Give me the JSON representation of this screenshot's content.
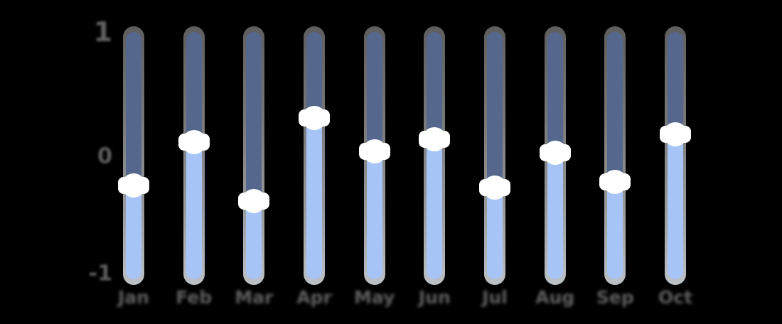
{
  "background": "#000000",
  "colors": {
    "upper_segment": "#56678e",
    "lower_segment": "#a7c4f6",
    "handle": "#ffffff",
    "rail_grey": "#8a8a8a",
    "text_grey": "#5f5f5f"
  },
  "y_axis": {
    "ticks": [
      "1",
      "0",
      "-1"
    ]
  },
  "chart_data": {
    "type": "bar",
    "subtype": "vertical-slider-columns",
    "title": "",
    "xlabel": "",
    "ylabel": "",
    "categories": [
      "Jan",
      "Feb",
      "Mar",
      "Apr",
      "May",
      "Jun",
      "Jul",
      "Aug",
      "Sep",
      "Oct"
    ],
    "values": [
      -0.24,
      0.12,
      -0.37,
      0.32,
      0.04,
      0.14,
      -0.26,
      0.03,
      -0.21,
      0.18
    ],
    "ylim": [
      -1,
      1
    ],
    "ytick_labels": [
      "1",
      "0",
      "-1"
    ],
    "grid": false,
    "legend": false,
    "description": "Each column is a slider: grey rail behind, dark blue-grey fill above the white round handle, light blue fill below it"
  }
}
